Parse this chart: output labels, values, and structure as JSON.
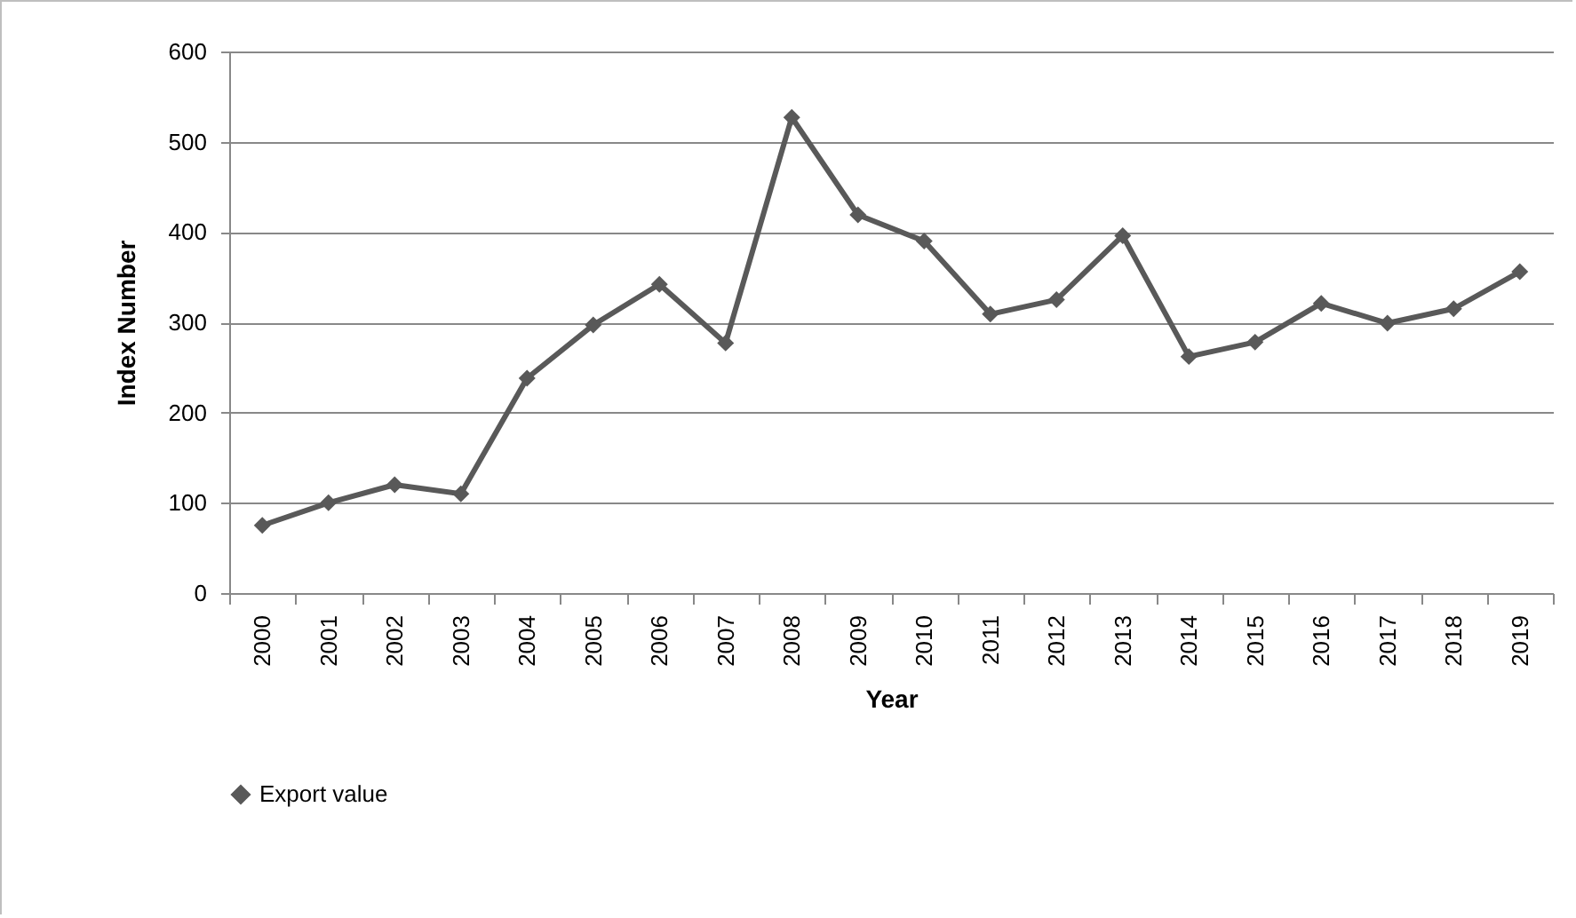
{
  "chart_data": {
    "type": "line",
    "xlabel": "Year",
    "ylabel": "Index Number",
    "categories": [
      "2000",
      "2001",
      "2002",
      "2003",
      "2004",
      "2005",
      "2006",
      "2007",
      "2008",
      "2009",
      "2010",
      "2011",
      "2012",
      "2013",
      "2014",
      "2015",
      "2016",
      "2017",
      "2018",
      "2019"
    ],
    "series": [
      {
        "name": "Export value",
        "color": "#595959",
        "values": [
          75,
          100,
          120,
          110,
          238,
          297,
          342,
          277,
          527,
          419,
          390,
          309,
          325,
          396,
          262,
          278,
          321,
          299,
          315,
          356
        ]
      }
    ],
    "ylim": [
      0,
      600
    ],
    "yticks": [
      0,
      100,
      200,
      300,
      400,
      500,
      600
    ],
    "grid": "y",
    "legend": "bottom",
    "marker": "diamond",
    "line_style": "solid"
  }
}
